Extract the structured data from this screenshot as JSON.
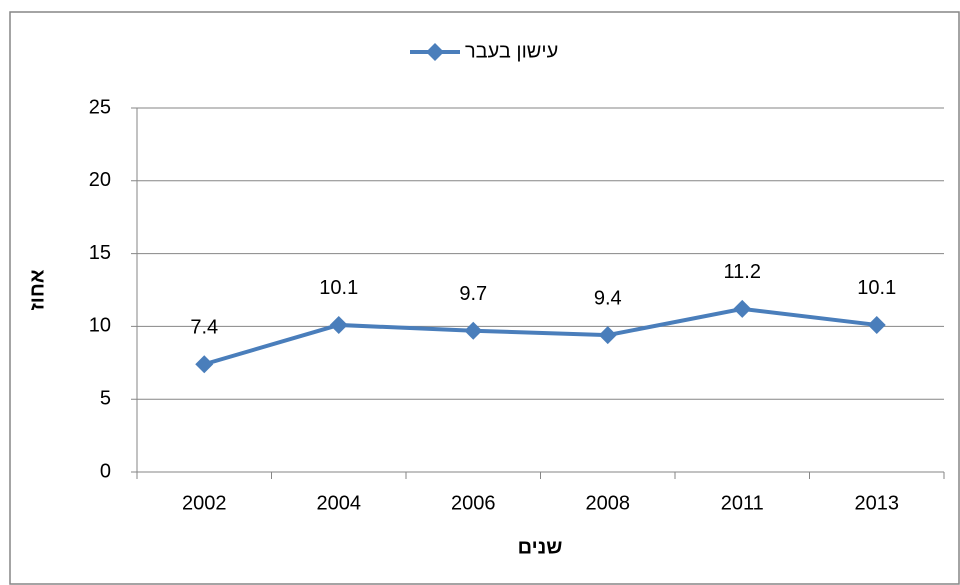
{
  "chart_data": {
    "type": "line",
    "categories": [
      "2002",
      "2004",
      "2006",
      "2008",
      "2011",
      "2013"
    ],
    "series": [
      {
        "name": "עישון בעבר",
        "color": "#4a7ebb",
        "values": [
          7.4,
          10.1,
          9.7,
          9.4,
          11.2,
          10.1
        ]
      }
    ],
    "ylim": [
      0,
      25
    ],
    "yticks": [
      0,
      5,
      10,
      15,
      20,
      25
    ],
    "grid": true,
    "y_label": "אחוז",
    "x_label": "שנים",
    "legend": "top"
  }
}
